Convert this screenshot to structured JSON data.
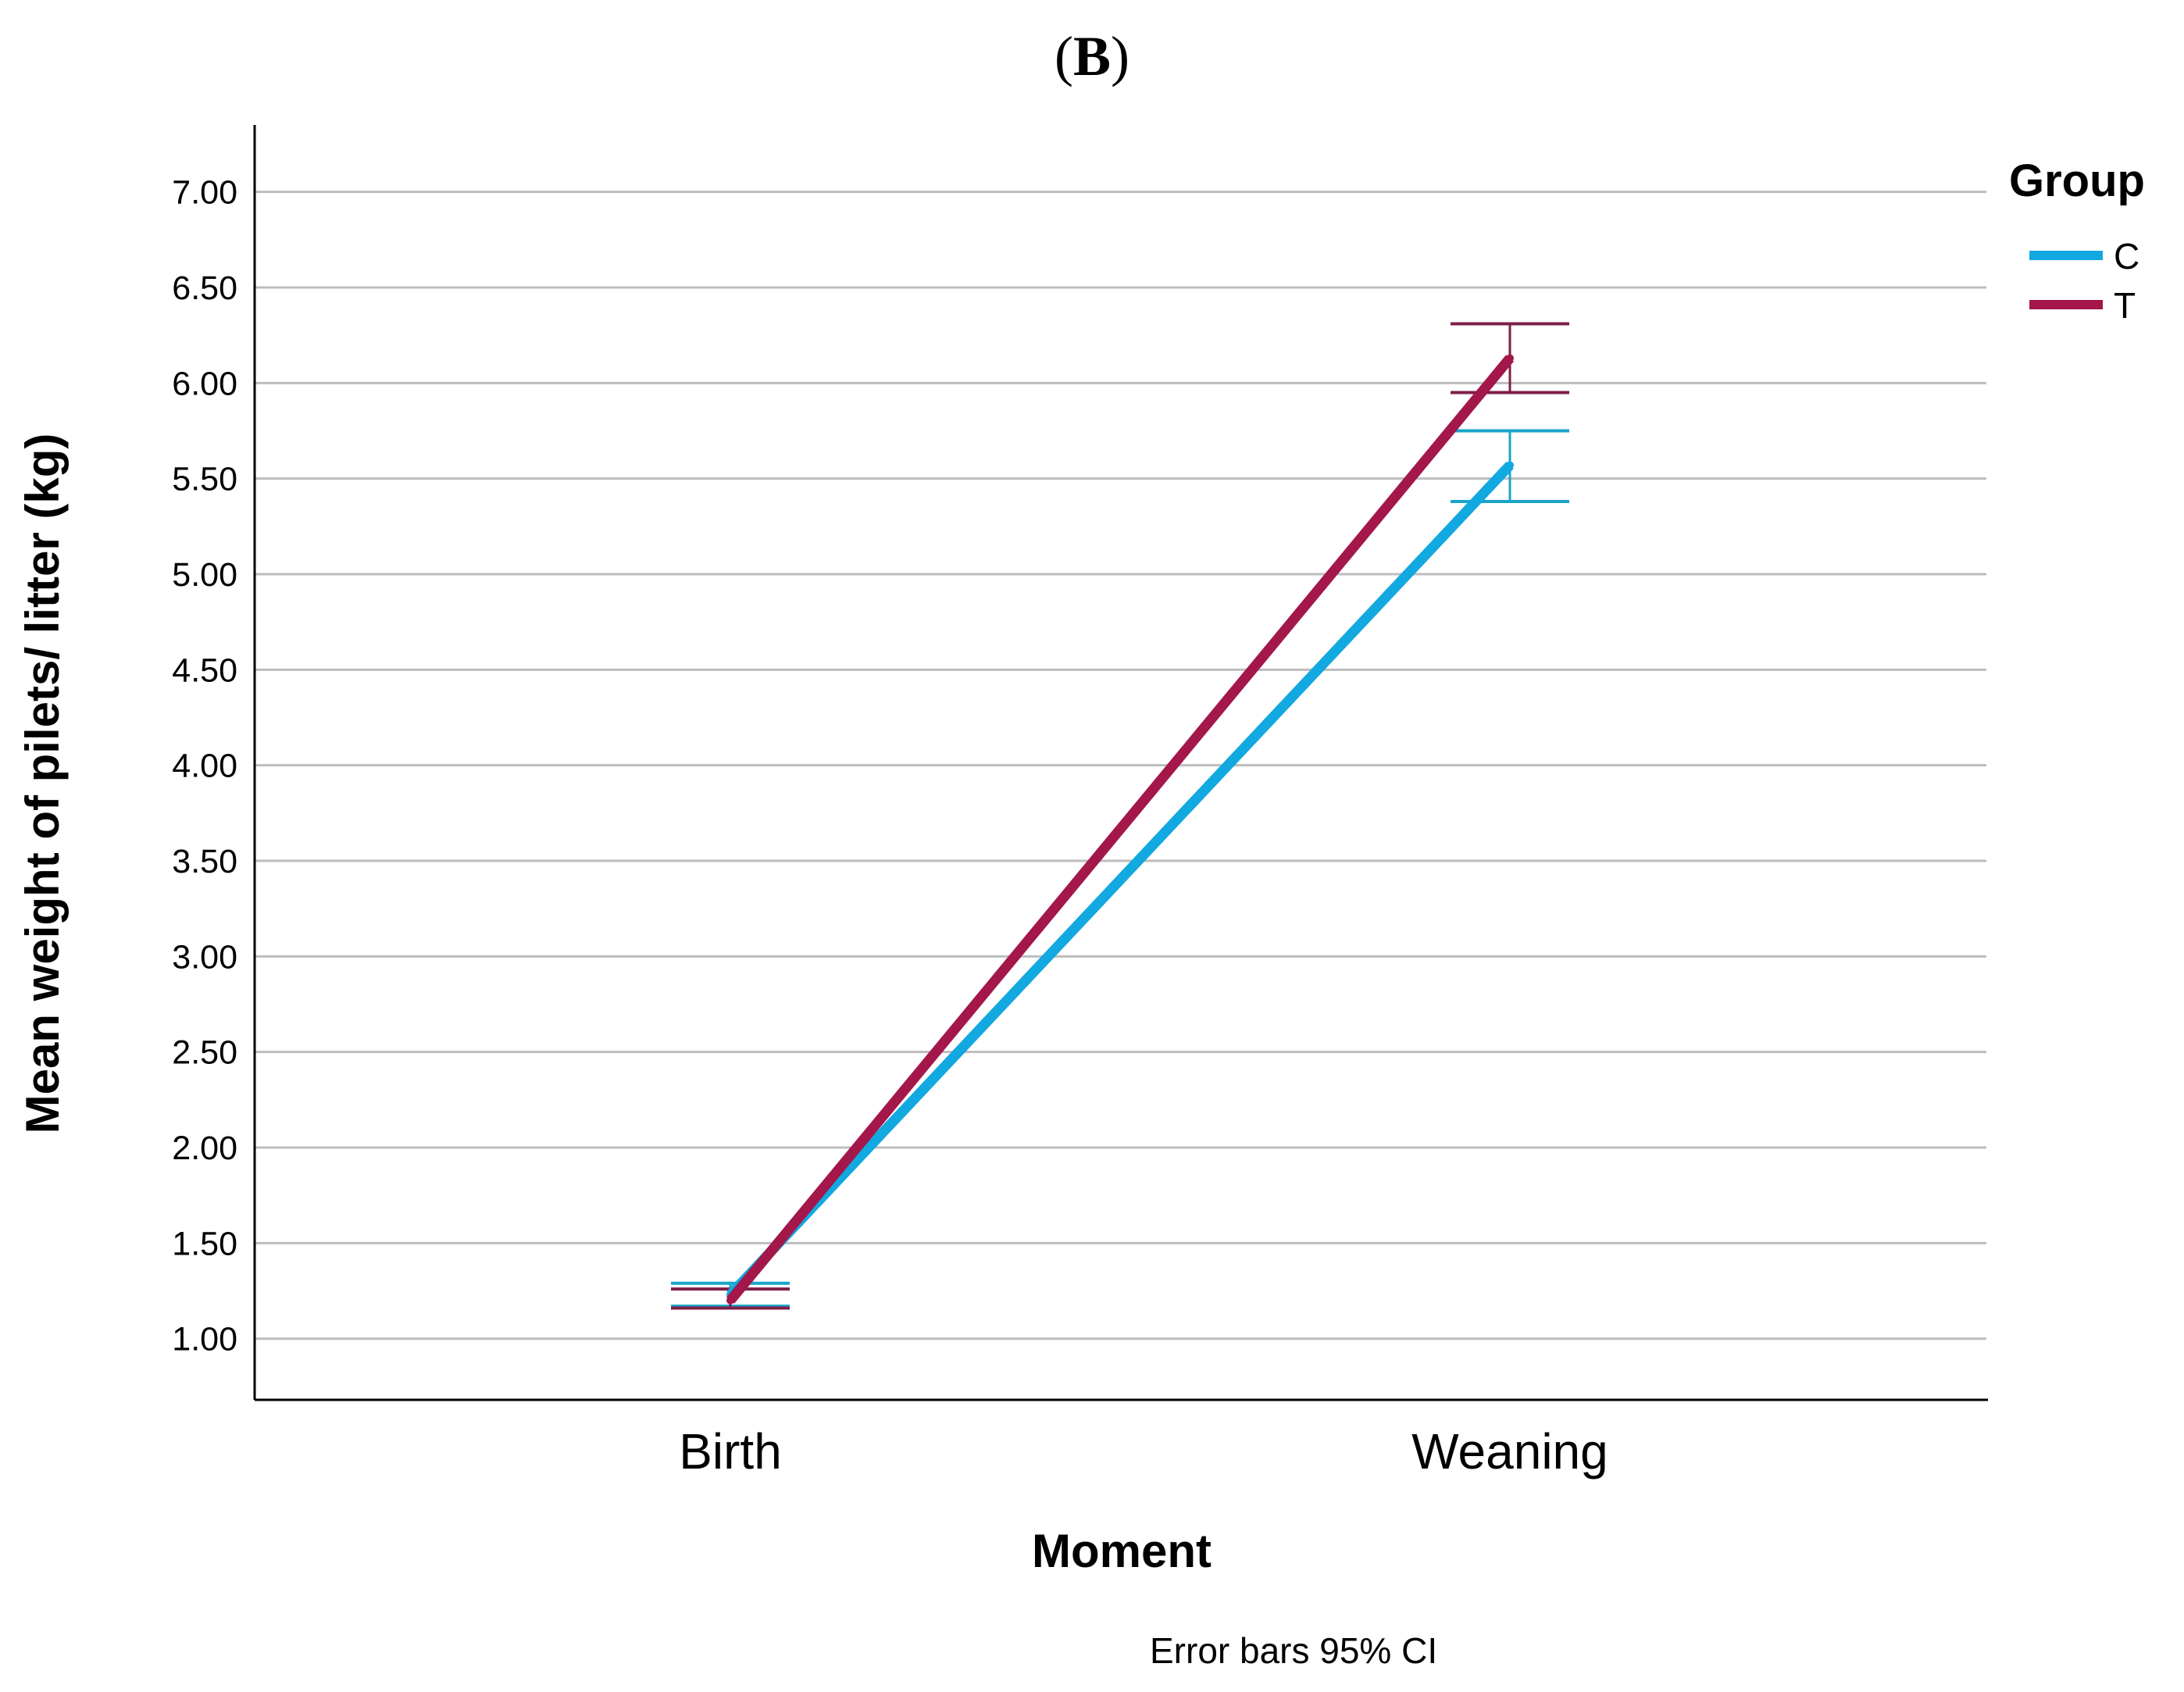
{
  "panel_label": {
    "open": "(",
    "letter": "B",
    "close": ")"
  },
  "footnote": "Error bars 95% CI",
  "chart_data": {
    "type": "line",
    "title": "",
    "xlabel": "Moment",
    "ylabel": "Mean weight of pilets/ litter (kg)",
    "categories": [
      "Birth",
      "Weaning"
    ],
    "ylim": [
      0.68,
      7.35
    ],
    "yticks": [
      1.0,
      1.5,
      2.0,
      2.5,
      3.0,
      3.5,
      4.0,
      4.5,
      5.0,
      5.5,
      6.0,
      6.5,
      7.0
    ],
    "ytick_labels": [
      "1.00",
      "1.50",
      "2.00",
      "2.50",
      "3.00",
      "3.50",
      "4.00",
      "4.50",
      "5.00",
      "5.50",
      "6.00",
      "6.50",
      "7.00"
    ],
    "grid": true,
    "legend": {
      "title": "Group",
      "placement": "top-right, outside plot"
    },
    "series": [
      {
        "name": "C",
        "color": "#12A8E0",
        "values": [
          1.23,
          5.57
        ],
        "ci_low": [
          1.17,
          5.38
        ],
        "ci_high": [
          1.29,
          5.75
        ]
      },
      {
        "name": "T",
        "color": "#A3174A",
        "values": [
          1.2,
          6.13
        ],
        "ci_low": [
          1.16,
          5.95
        ],
        "ci_high": [
          1.26,
          6.31
        ]
      }
    ],
    "error_bar_color": {
      "C": "#18A5C9",
      "T": "#7E1E4A"
    },
    "colors": {
      "grid": "#BDBDBD",
      "axis": "#000000"
    }
  }
}
